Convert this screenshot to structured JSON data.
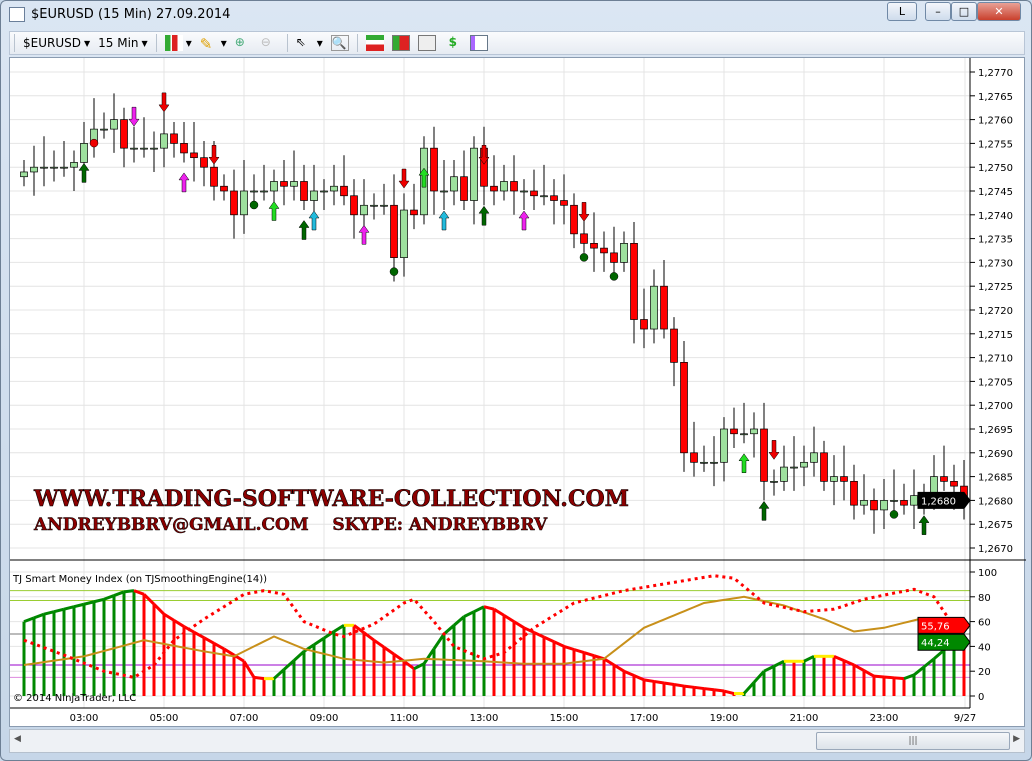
{
  "window": {
    "title": "$EURUSD (15 Min)  27.09.2014",
    "buttons": [
      "L",
      "–",
      "□",
      "✕"
    ]
  },
  "toolbar": {
    "instrument": "$EURUSD",
    "interval": "15 Min",
    "icons": [
      "bar-style-icon",
      "draw-pencil-icon",
      "zoom-in-icon",
      "zoom-out-icon",
      "pointer-icon",
      "zoom-rect-icon",
      "strategies-icon",
      "data-box-icon",
      "indicators-icon",
      "order-icon",
      "properties-icon"
    ]
  },
  "price_panel": {
    "price_ticks": [
      "1,2770",
      "1,2765",
      "1,2760",
      "1,2755",
      "1,2750",
      "1,2745",
      "1,2740",
      "1,2735",
      "1,2730",
      "1,2725",
      "1,2720",
      "1,2715",
      "1,2710",
      "1,2705",
      "1,2700",
      "1,2695",
      "1,2690",
      "1,2685",
      "1,2680",
      "1,2675",
      "1,2670"
    ],
    "last_price": "1,2680",
    "watermark_line1": "WWW.TRADING-SOFTWARE-COLLECTION.COM",
    "watermark_line2": "ANDREYBBRV@GMAIL.COM    SKYPE: ANDREYBBRV",
    "colors": {
      "up": "#9ee09e",
      "down": "#ff0000",
      "grid": "#e4e4e4"
    }
  },
  "indicator_panel": {
    "label": "TJ Smart Money Index (on TJSmoothingEngine(14))",
    "ticks": [
      "100",
      "80",
      "60",
      "40",
      "20",
      "0"
    ],
    "value_red": "55,76",
    "value_green": "44,24",
    "copyright": "© 2014 NinjaTrader, LLC",
    "levels": [
      {
        "v": 85,
        "c": "#9acd32"
      },
      {
        "v": 77,
        "c": "#9acd32"
      },
      {
        "v": 50,
        "c": "#777777"
      },
      {
        "v": 25,
        "c": "#9900cc"
      },
      {
        "v": 15,
        "c": "#dd88dd"
      }
    ]
  },
  "time_axis": {
    "labels": [
      "03:00",
      "05:00",
      "07:00",
      "09:00",
      "11:00",
      "13:00",
      "15:00",
      "17:00",
      "19:00",
      "21:00",
      "23:00",
      "9/27"
    ]
  },
  "chart_data": {
    "type": "candlestick",
    "closes": [
      1.2749,
      1.275,
      1.275,
      1.275,
      1.275,
      1.2751,
      1.2755,
      1.2758,
      1.2758,
      1.276,
      1.2754,
      1.2754,
      1.2754,
      1.2754,
      1.2757,
      1.2755,
      1.2753,
      1.2752,
      1.275,
      1.2746,
      1.2745,
      1.274,
      1.2745,
      1.2745,
      1.2745,
      1.2747,
      1.2746,
      1.2747,
      1.2743,
      1.2745,
      1.2745,
      1.2746,
      1.2744,
      1.274,
      1.2742,
      1.2742,
      1.2742,
      1.2731,
      1.2741,
      1.274,
      1.2754,
      1.2745,
      1.2745,
      1.2748,
      1.2743,
      1.2754,
      1.2746,
      1.2745,
      1.2747,
      1.2745,
      1.2745,
      1.2744,
      1.2744,
      1.2743,
      1.2742,
      1.2736,
      1.2734,
      1.2733,
      1.2732,
      1.273,
      1.2734,
      1.2718,
      1.2716,
      1.2725,
      1.2716,
      1.2709,
      1.269,
      1.2688,
      1.2688,
      1.2688,
      1.2695,
      1.2694,
      1.2694,
      1.2695,
      1.2684,
      1.2684,
      1.2687,
      1.2687,
      1.2688,
      1.269,
      1.2684,
      1.2685,
      1.2684,
      1.2679,
      1.268,
      1.2678,
      1.268,
      1.268,
      1.2679,
      1.2681,
      1.2681,
      1.2685,
      1.2684,
      1.2683,
      1.268
    ],
    "ylim": [
      1.2667,
      1.2772
    ],
    "smi_histogram": [
      [
        0,
        60
      ],
      [
        2,
        66
      ],
      [
        4,
        70
      ],
      [
        6,
        74
      ],
      [
        8,
        78
      ],
      [
        10,
        84
      ],
      [
        11,
        85
      ],
      [
        12,
        82
      ],
      [
        14,
        66
      ],
      [
        16,
        56
      ],
      [
        18,
        47
      ],
      [
        20,
        38
      ],
      [
        22,
        28
      ],
      [
        23,
        15
      ],
      [
        24,
        14
      ],
      [
        25,
        14
      ],
      [
        28,
        36
      ],
      [
        31,
        52
      ],
      [
        32,
        57
      ],
      [
        33,
        57
      ],
      [
        35,
        45
      ],
      [
        38,
        28
      ],
      [
        39,
        22
      ],
      [
        40,
        26
      ],
      [
        42,
        50
      ],
      [
        44,
        64
      ],
      [
        46,
        72
      ],
      [
        47,
        70
      ],
      [
        50,
        55
      ],
      [
        54,
        40
      ],
      [
        58,
        30
      ],
      [
        60,
        20
      ],
      [
        62,
        13
      ],
      [
        66,
        8
      ],
      [
        70,
        4
      ],
      [
        71,
        2
      ],
      [
        72,
        2
      ],
      [
        74,
        20
      ],
      [
        76,
        28
      ],
      [
        78,
        28
      ],
      [
        79,
        32
      ],
      [
        81,
        32
      ],
      [
        83,
        25
      ],
      [
        85,
        16
      ],
      [
        88,
        14
      ],
      [
        89,
        17
      ],
      [
        91,
        30
      ],
      [
        93,
        44
      ]
    ],
    "red_dotted": [
      [
        0,
        45
      ],
      [
        4,
        33
      ],
      [
        8,
        20
      ],
      [
        11,
        15
      ],
      [
        13,
        25
      ],
      [
        15,
        45
      ],
      [
        18,
        62
      ],
      [
        22,
        82
      ],
      [
        24,
        85
      ],
      [
        26,
        82
      ],
      [
        28,
        60
      ],
      [
        31,
        50
      ],
      [
        32,
        48
      ],
      [
        35,
        58
      ],
      [
        38,
        75
      ],
      [
        39,
        78
      ],
      [
        41,
        60
      ],
      [
        43,
        40
      ],
      [
        46,
        30
      ],
      [
        48,
        35
      ],
      [
        51,
        55
      ],
      [
        55,
        75
      ],
      [
        60,
        85
      ],
      [
        66,
        93
      ],
      [
        69,
        97
      ],
      [
        71,
        95
      ],
      [
        74,
        75
      ],
      [
        78,
        68
      ],
      [
        81,
        70
      ],
      [
        84,
        78
      ],
      [
        87,
        83
      ],
      [
        89,
        86
      ],
      [
        91,
        80
      ],
      [
        93,
        56
      ]
    ],
    "gold_line": [
      [
        0,
        25
      ],
      [
        6,
        32
      ],
      [
        12,
        45
      ],
      [
        18,
        36
      ],
      [
        21,
        32
      ],
      [
        25,
        48
      ],
      [
        28,
        38
      ],
      [
        32,
        30
      ],
      [
        36,
        27
      ],
      [
        40,
        30
      ],
      [
        46,
        28
      ],
      [
        50,
        26
      ],
      [
        54,
        26
      ],
      [
        58,
        30
      ],
      [
        62,
        55
      ],
      [
        68,
        75
      ],
      [
        72,
        80
      ],
      [
        76,
        73
      ],
      [
        80,
        62
      ],
      [
        83,
        52
      ],
      [
        86,
        55
      ],
      [
        90,
        63
      ],
      [
        93,
        55
      ]
    ],
    "signals": [
      [
        6,
        "up-darkgreen"
      ],
      [
        7,
        "dot-red"
      ],
      [
        11,
        "down-magenta"
      ],
      [
        14,
        "down-red"
      ],
      [
        16,
        "up-magenta"
      ],
      [
        19,
        "down-red"
      ],
      [
        23,
        "dot-green"
      ],
      [
        25,
        "up-lime"
      ],
      [
        28,
        "up-darkgreen"
      ],
      [
        29,
        "up-cyan"
      ],
      [
        34,
        "up-magenta"
      ],
      [
        37,
        "dot-green"
      ],
      [
        38,
        "down-red"
      ],
      [
        40,
        "up-lime"
      ],
      [
        42,
        "up-cyan"
      ],
      [
        46,
        "down-red"
      ],
      [
        46,
        "up-darkgreen"
      ],
      [
        50,
        "up-magenta"
      ],
      [
        56,
        "down-red"
      ],
      [
        56,
        "dot-green"
      ],
      [
        59,
        "dot-green"
      ],
      [
        72,
        "up-lime"
      ],
      [
        75,
        "down-red"
      ],
      [
        74,
        "up-darkgreen"
      ],
      [
        87,
        "dot-green"
      ],
      [
        90,
        "up-darkgreen"
      ]
    ]
  }
}
